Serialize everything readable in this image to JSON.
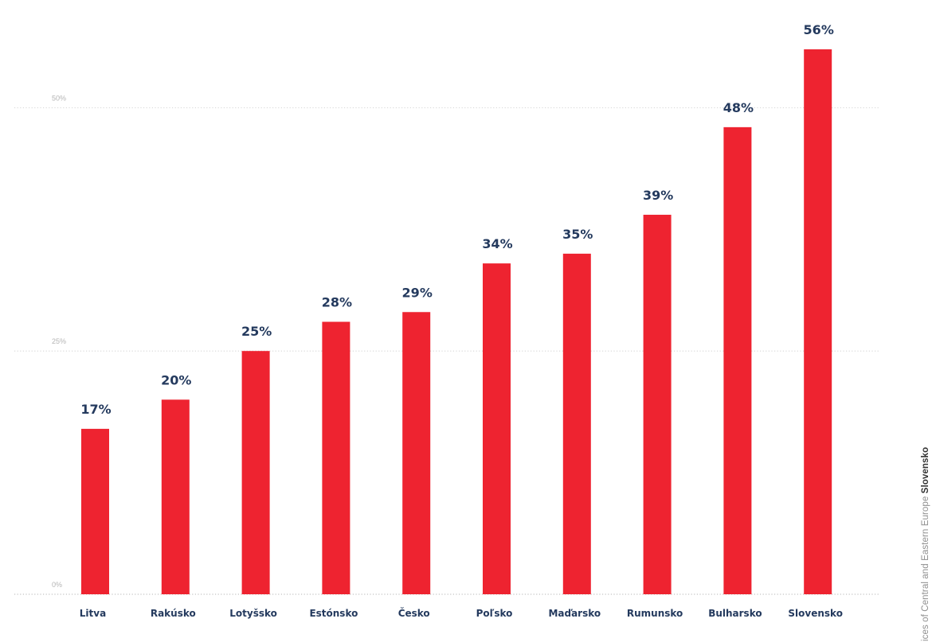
{
  "chart_data": {
    "type": "bar",
    "categories": [
      "Litva",
      "Rakúsko",
      "Lotyšsko",
      "Estónsko",
      "Česko",
      "Poľsko",
      "Maďarsko",
      "Rumunsko",
      "Bulharsko",
      "Slovensko"
    ],
    "values": [
      17,
      20,
      25,
      28,
      29,
      34,
      35,
      39,
      48,
      56
    ],
    "value_labels": [
      "17%",
      "20%",
      "25%",
      "28%",
      "29%",
      "34%",
      "35%",
      "39%",
      "48%",
      "56%"
    ],
    "y_ticks": [
      {
        "value": 0,
        "label": "0%"
      },
      {
        "value": 25,
        "label": "25%"
      },
      {
        "value": 50,
        "label": "50%"
      }
    ],
    "ylim": [
      0,
      60
    ],
    "grid": true,
    "bar_color": "#ee2330",
    "label_color": "#243a5e"
  },
  "source": {
    "prefix": "ices of Central and Eastern Europe ",
    "highlight": "Slovensko"
  }
}
